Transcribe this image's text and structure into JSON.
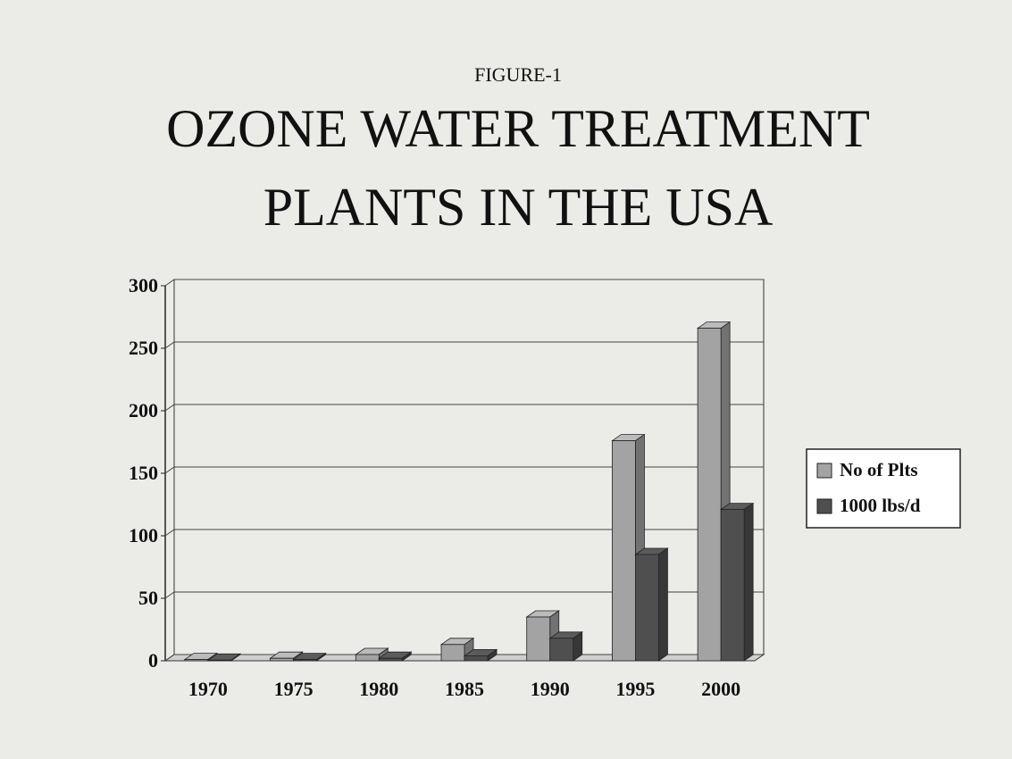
{
  "chart_data": {
    "type": "bar3d",
    "subtitle": "FIGURE-1",
    "title": [
      "OZONE WATER TREATMENT",
      "PLANTS IN THE USA"
    ],
    "categories": [
      "1970",
      "1975",
      "1980",
      "1985",
      "1990",
      "1995",
      "2000"
    ],
    "series": [
      {
        "name": "No of Plts",
        "color": "#a3a3a3",
        "values": [
          1,
          2,
          5,
          13,
          35,
          176,
          266
        ]
      },
      {
        "name": "1000 lbs/d",
        "color": "#4f4f4f",
        "values": [
          0.5,
          1,
          2,
          4,
          18,
          85,
          121
        ]
      }
    ],
    "ylim": [
      0,
      300
    ],
    "yticks": [
      0,
      50,
      100,
      150,
      200,
      250,
      300
    ],
    "grid": true,
    "legend": "right"
  }
}
